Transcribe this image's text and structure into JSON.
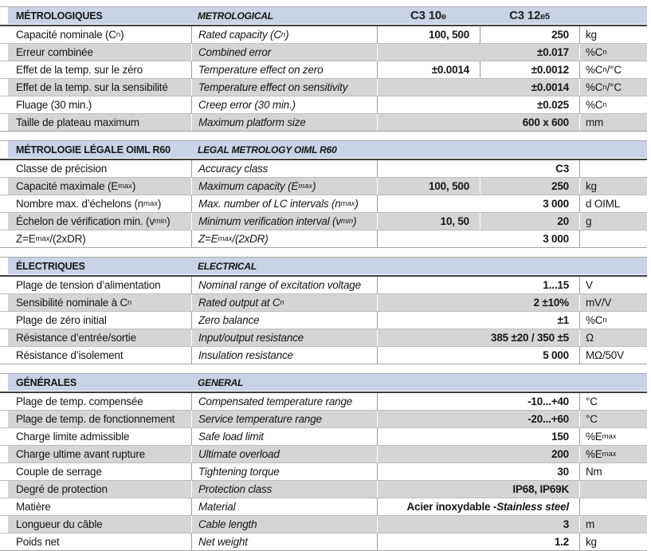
{
  "colors": {
    "header_bar": "#c9d2e7",
    "row_stripe": "#d5d5d5",
    "dark_rule": "#3e3e3e",
    "top_line": "#a9a9a9",
    "row_line": "#bdbdbd",
    "section_bottom_line": "#a3a3a3",
    "divider": "#9c9c9c"
  },
  "models": [
    {
      "name": "C3 10",
      "suffix": "e"
    },
    {
      "name": "C3 12",
      "suffix": "e5"
    }
  ],
  "sections": [
    {
      "id": "metrological",
      "title_fr": "MÉTROLOGIQUES",
      "title_en": "METROLOGICAL",
      "show_models": true,
      "rows": [
        {
          "fr": "Capacité nominale (C~n~)",
          "en": "Rated capacity (C~n~)",
          "v1": "100, 500",
          "v2": "250",
          "unit": "kg"
        },
        {
          "fr": "Erreur combinée",
          "en": "Combined error",
          "value": "±0.017",
          "unit": "%C~n~"
        },
        {
          "fr": "Effet de la temp. sur le zéro",
          "en": "Temperature effect on zero",
          "v1": "±0.0014",
          "v2": "±0.0012",
          "unit": "%C~n~/°C"
        },
        {
          "fr": "Effet de la temp. sur la sensibilité",
          "en": "Temperature effect on sensitivity",
          "value": "±0.0014",
          "unit": "%C~n~/°C"
        },
        {
          "fr": "Fluage (30 min.)",
          "en": "Creep error (30 min.)",
          "value": "±0.025",
          "unit": "%C~n~"
        },
        {
          "fr": "Taille de plateau maximum",
          "en": "Maximum platform size",
          "value": "600 x 600",
          "unit": "mm"
        }
      ]
    },
    {
      "id": "legal-metrology",
      "title_fr": "MÉTROLOGIE LÉGALE OIML R60",
      "title_en": "LEGAL METROLOGY OIML R60",
      "show_models": false,
      "rows": [
        {
          "fr": "Classe de précision",
          "en": "Accuracy class",
          "value": "C3",
          "unit": ""
        },
        {
          "fr": "Capacité maximale (E~max~)",
          "en": "Maximum capacity (E~max~)",
          "v1": "100, 500",
          "v2": "250",
          "unit": "kg"
        },
        {
          "fr": "Nombre max. d’échelons (n~max~)",
          "en": "Max. number of LC intervals (n~max~)",
          "value": "3 000",
          "unit": "d OIML"
        },
        {
          "fr": "Échelon de vérification min. (v~min~)",
          "en": "Minimum verification interval (v~min~)",
          "v1": "10, 50",
          "v2": "20",
          "unit": "g"
        },
        {
          "fr": "Z=E~max~/(2xDR)",
          "en": "Z=E~max~/(2xDR)",
          "value": "3 000",
          "unit": ""
        }
      ]
    },
    {
      "id": "electrical",
      "title_fr": "ÉLECTRIQUES",
      "title_en": "ELECTRICAL",
      "show_models": false,
      "rows": [
        {
          "fr": "Plage de tension d’alimentation",
          "en": "Nominal range of excitation voltage",
          "value": "1...15",
          "unit": "V"
        },
        {
          "fr": "Sensibilité nominale à C~n~",
          "en": "Rated output at C~n~",
          "value": "2 ±10%",
          "unit": "mV/V"
        },
        {
          "fr": "Plage de zéro initial",
          "en": "Zero balance",
          "value": "±1",
          "unit": "%C~n~"
        },
        {
          "fr": "Résistance d’entrée/sortie",
          "en": "Input/output resistance",
          "value": "385 ±20 / 350 ±5",
          "unit": "Ω"
        },
        {
          "fr": "Résistance d’isolement",
          "en": "Insulation resistance",
          "value": "5 000",
          "unit": "MΩ/50V"
        }
      ]
    },
    {
      "id": "general",
      "title_fr": "GÉNÉRALES",
      "title_en": "GENERAL",
      "show_models": false,
      "rows": [
        {
          "fr": "Plage de temp. compensée",
          "en": "Compensated temperature range",
          "value": "-10...+40",
          "unit": "°C"
        },
        {
          "fr": "Plage de temp. de fonctionnement",
          "en": "Service temperature range",
          "value": "-20...+60",
          "unit": "°C"
        },
        {
          "fr": "Charge limite admissible",
          "en": "Safe load limit",
          "value": "150",
          "unit": "%E~max~"
        },
        {
          "fr": "Charge ultime avant rupture",
          "en": "Ultimate overload",
          "value": "200",
          "unit": "%E~max~"
        },
        {
          "fr": "Couple de serrage",
          "en": "Tightening torque",
          "value": "30",
          "unit": "Nm"
        },
        {
          "fr": "Degré de protection",
          "en": "Protection class",
          "value": "IP68, IP69K",
          "unit": ""
        },
        {
          "fr": "Matière",
          "en": "Material",
          "value": "Acier inoxydable - *Stainless steel*",
          "unit": ""
        },
        {
          "fr": "Longueur du câble",
          "en": "Cable length",
          "value": "3",
          "unit": "m"
        },
        {
          "fr": "Poids net",
          "en": "Net weight",
          "value": "1.2",
          "unit": "kg"
        }
      ]
    }
  ]
}
